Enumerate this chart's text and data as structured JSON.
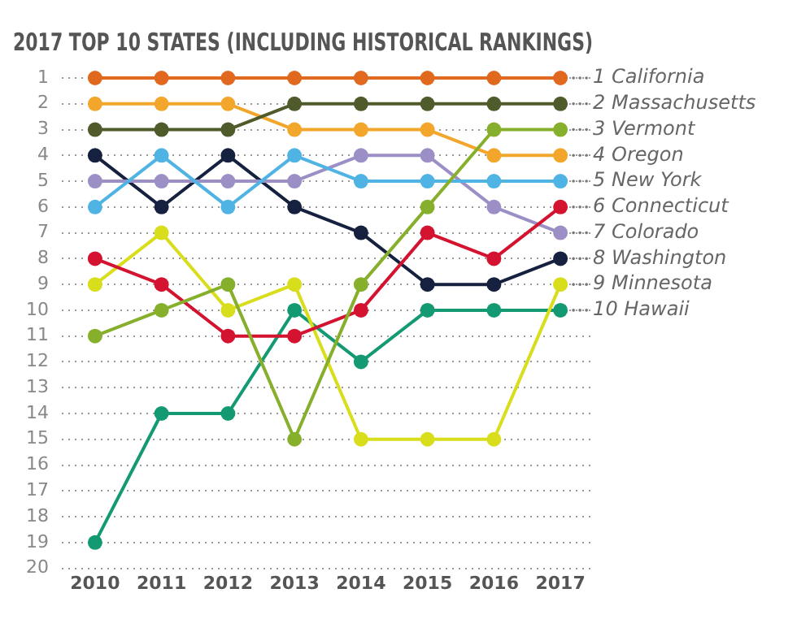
{
  "chart_data": {
    "type": "line",
    "title": "2017 TOP 10 STATES (INCLUDING HISTORICAL RANKINGS)",
    "categories": [
      "2010",
      "2011",
      "2012",
      "2013",
      "2014",
      "2015",
      "2016",
      "2017"
    ],
    "series": [
      {
        "name": "1 California",
        "color": "#e0691f",
        "values": [
          1,
          1,
          1,
          1,
          1,
          1,
          1,
          1
        ]
      },
      {
        "name": "2 Massachusetts",
        "color": "#4f5b2a",
        "values": [
          3,
          3,
          3,
          2,
          2,
          2,
          2,
          2
        ]
      },
      {
        "name": "3 Vermont",
        "color": "#86b02b",
        "values": [
          11,
          10,
          9,
          15,
          9,
          6,
          3,
          3
        ]
      },
      {
        "name": "4 Oregon",
        "color": "#f2a62c",
        "values": [
          2,
          2,
          2,
          3,
          3,
          3,
          4,
          4
        ]
      },
      {
        "name": "5 New York",
        "color": "#4fb3e3",
        "values": [
          6,
          4,
          6,
          4,
          5,
          5,
          5,
          5
        ]
      },
      {
        "name": "6 Connecticut",
        "color": "#d3132f",
        "values": [
          8,
          9,
          11,
          11,
          10,
          7,
          8,
          6
        ]
      },
      {
        "name": "7 Colorado",
        "color": "#9c8fc6",
        "values": [
          5,
          5,
          5,
          5,
          4,
          4,
          6,
          7
        ]
      },
      {
        "name": "8 Washington",
        "color": "#16213f",
        "values": [
          4,
          6,
          4,
          6,
          7,
          9,
          9,
          8
        ]
      },
      {
        "name": "9 Minnesota",
        "color": "#d8dd1c",
        "values": [
          9,
          7,
          10,
          9,
          15,
          15,
          15,
          9
        ]
      },
      {
        "name": "10 Hawaii",
        "color": "#149a72",
        "values": [
          19,
          14,
          14,
          10,
          12,
          10,
          10,
          10
        ]
      }
    ],
    "ylim": [
      20,
      1
    ],
    "yticks": [
      1,
      2,
      3,
      4,
      5,
      6,
      7,
      8,
      9,
      10,
      11,
      12,
      13,
      14,
      15,
      16,
      17,
      18,
      19,
      20
    ],
    "grid": "y",
    "legend": "right",
    "marker": "circle",
    "line_style": "solid"
  }
}
